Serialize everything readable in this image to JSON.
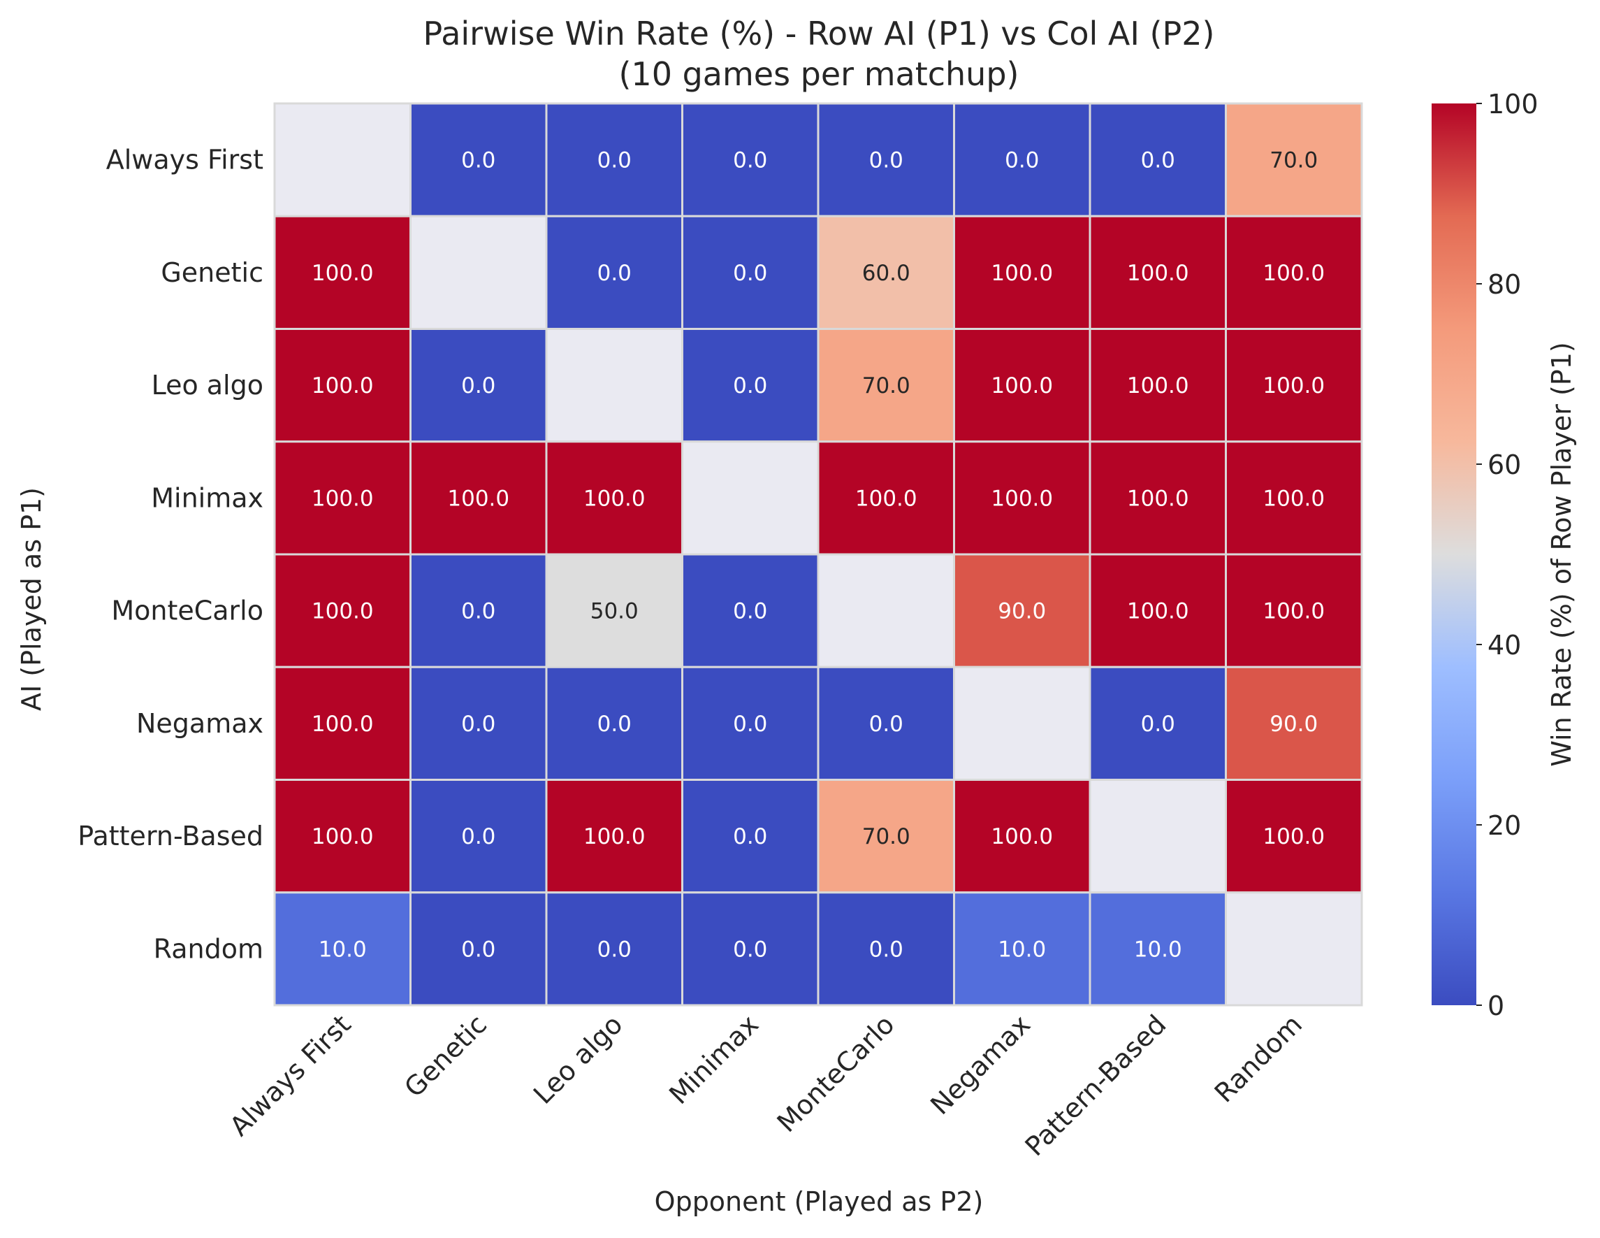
{
  "chart_data": {
    "type": "heatmap",
    "title": "Pairwise Win Rate (%) - Row AI (P1) vs Col AI (P2)",
    "subtitle": "(10 games per matchup)",
    "xlabel": "Opponent (Played as P2)",
    "ylabel": "AI (Played as P1)",
    "colorbar_label": "Win Rate (%) of Row Player (P1)",
    "colorbar_range": [
      0,
      100
    ],
    "colorbar_ticks": [
      "0",
      "20",
      "40",
      "60",
      "80",
      "100"
    ],
    "colormap": "coolwarm",
    "diagonal_color": "#eaeaf2",
    "grid_line_color": "#d9d9d9",
    "rows": [
      "Always First",
      "Genetic",
      "Leo algo",
      "Minimax",
      "MonteCarlo",
      "Negamax",
      "Pattern-Based",
      "Random"
    ],
    "columns": [
      "Always First",
      "Genetic",
      "Leo algo",
      "Minimax",
      "MonteCarlo",
      "Negamax",
      "Pattern-Based",
      "Random"
    ],
    "values": [
      [
        null,
        0.0,
        0.0,
        0.0,
        0.0,
        0.0,
        0.0,
        70.0
      ],
      [
        100.0,
        null,
        0.0,
        0.0,
        60.0,
        100.0,
        100.0,
        100.0
      ],
      [
        100.0,
        0.0,
        null,
        0.0,
        70.0,
        100.0,
        100.0,
        100.0
      ],
      [
        100.0,
        100.0,
        100.0,
        null,
        100.0,
        100.0,
        100.0,
        100.0
      ],
      [
        100.0,
        0.0,
        50.0,
        0.0,
        null,
        90.0,
        100.0,
        100.0
      ],
      [
        100.0,
        0.0,
        0.0,
        0.0,
        0.0,
        null,
        0.0,
        90.0
      ],
      [
        100.0,
        0.0,
        100.0,
        0.0,
        70.0,
        100.0,
        null,
        100.0
      ],
      [
        10.0,
        0.0,
        0.0,
        0.0,
        0.0,
        10.0,
        10.0,
        null
      ]
    ],
    "value_labels": [
      [
        "",
        "0.0",
        "0.0",
        "0.0",
        "0.0",
        "0.0",
        "0.0",
        "70.0"
      ],
      [
        "100.0",
        "",
        "0.0",
        "0.0",
        "60.0",
        "100.0",
        "100.0",
        "100.0"
      ],
      [
        "100.0",
        "0.0",
        "",
        "0.0",
        "70.0",
        "100.0",
        "100.0",
        "100.0"
      ],
      [
        "100.0",
        "100.0",
        "100.0",
        "",
        "100.0",
        "100.0",
        "100.0",
        "100.0"
      ],
      [
        "100.0",
        "0.0",
        "50.0",
        "0.0",
        "",
        "90.0",
        "100.0",
        "100.0"
      ],
      [
        "100.0",
        "0.0",
        "0.0",
        "0.0",
        "0.0",
        "",
        "0.0",
        "90.0"
      ],
      [
        "100.0",
        "0.0",
        "100.0",
        "0.0",
        "70.0",
        "100.0",
        "",
        "100.0"
      ],
      [
        "10.0",
        "0.0",
        "0.0",
        "0.0",
        "0.0",
        "10.0",
        "10.0",
        ""
      ]
    ]
  }
}
